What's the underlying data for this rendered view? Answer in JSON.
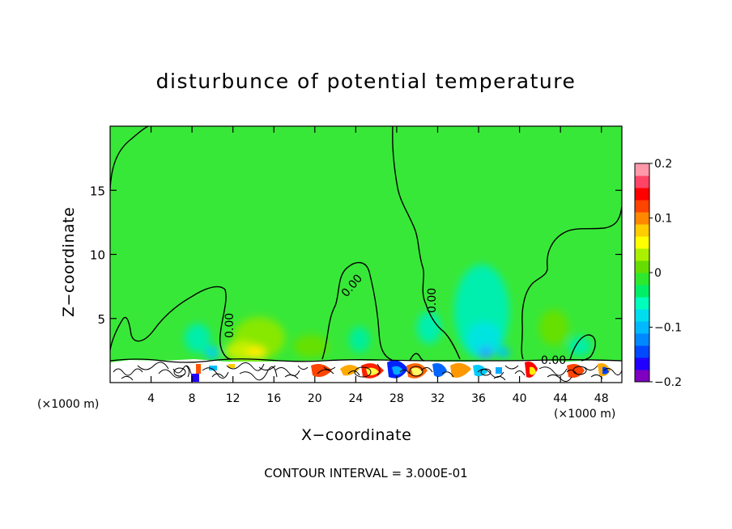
{
  "chart_data": {
    "type": "heatmap",
    "title": "disturbunce of potential temperature",
    "xlabel": "X−coordinate",
    "ylabel": "Z−coordinate",
    "x_unit": "(×1000 m)",
    "xlim": [
      0,
      50
    ],
    "ylim": [
      0,
      20
    ],
    "x_ticks": [
      4,
      8,
      12,
      16,
      20,
      24,
      28,
      32,
      36,
      40,
      44,
      48
    ],
    "y_ticks": [
      5,
      10,
      15
    ],
    "colorbar": {
      "range": [
        -0.2,
        0.2
      ],
      "tick_values": [
        0.2,
        0.1,
        0,
        -0.1,
        -0.2
      ],
      "tick_labels": [
        "0.2",
        "0.1",
        "0",
        "−0.1",
        "−0.2"
      ],
      "colors": [
        "#7f00bf",
        "#2200ff",
        "#0049ff",
        "#0088ff",
        "#00b9ff",
        "#00ddee",
        "#00ffbb",
        "#00ee66",
        "#2ee82e",
        "#66dd00",
        "#aaf000",
        "#ffff00",
        "#ffcc00",
        "#ff8800",
        "#ff4400",
        "#ff0000",
        "#ff4466",
        "#ff99aa"
      ]
    },
    "background_color": "#38e838",
    "contour_labels": [
      "0.00",
      "0.00",
      "0.00",
      "0.00"
    ],
    "footer": "CONTOUR INTERVAL = 3.000E-01"
  }
}
